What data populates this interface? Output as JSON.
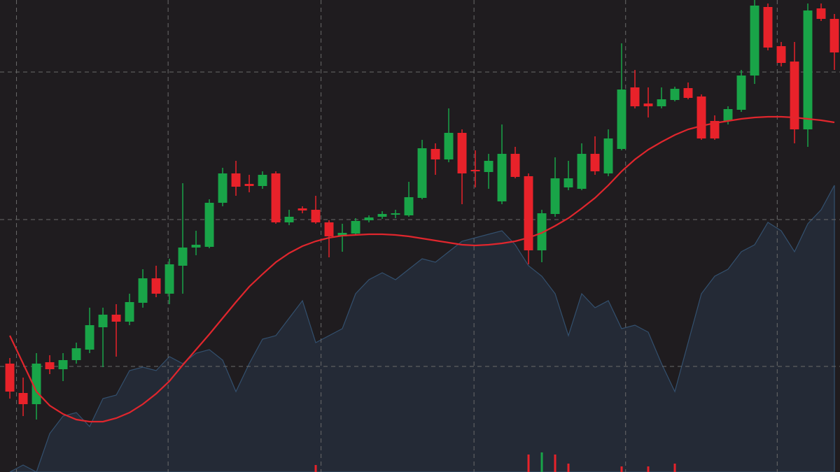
{
  "chart_data": {
    "type": "candlestick",
    "background": "#1f1c1f",
    "grid": true,
    "grid_color": "#6a6a6a",
    "xlim": [
      -0.74,
      62.42
    ],
    "ylim": [
      0,
      675
    ],
    "xticks": [
      0.5,
      11.9,
      23.4,
      34.9,
      46.3,
      57.7
    ],
    "yticks": [
      151,
      361,
      572
    ],
    "up_color": "#19a448",
    "down_color": "#e8222a",
    "x": [
      0,
      1,
      2,
      3,
      4,
      5,
      6,
      7,
      8,
      9,
      10,
      11,
      12,
      13,
      14,
      15,
      16,
      17,
      18,
      19,
      20,
      21,
      22,
      23,
      24,
      25,
      26,
      27,
      28,
      29,
      30,
      31,
      32,
      33,
      34,
      35,
      36,
      37,
      38,
      39,
      40,
      41,
      42,
      43,
      44,
      45,
      46,
      47,
      48,
      49,
      50,
      51,
      52,
      53,
      54,
      55,
      56,
      57,
      58,
      59,
      60,
      61,
      62
    ],
    "open": [
      155,
      113,
      97,
      157,
      147,
      160,
      175,
      207,
      225,
      215,
      242,
      277,
      255,
      295,
      321,
      322,
      385,
      427,
      412,
      409,
      427,
      357,
      377,
      375,
      357,
      337,
      341,
      360,
      365,
      368,
      367,
      392,
      462,
      447,
      485,
      432,
      429,
      387,
      455,
      423,
      317,
      369,
      407,
      405,
      455,
      427,
      462,
      550,
      527,
      523,
      532,
      549,
      537,
      502,
      502,
      518,
      567,
      665,
      609,
      587,
      490,
      663,
      648
    ],
    "high": [
      163,
      135,
      170,
      167,
      170,
      185,
      235,
      235,
      240,
      255,
      290,
      295,
      305,
      413,
      345,
      390,
      435,
      445,
      425,
      430,
      430,
      375,
      380,
      395,
      360,
      355,
      363,
      367,
      373,
      375,
      415,
      475,
      470,
      520,
      490,
      460,
      455,
      497,
      465,
      427,
      375,
      450,
      445,
      470,
      480,
      490,
      613,
      575,
      550,
      550,
      551,
      557,
      540,
      510,
      523,
      575,
      675,
      670,
      615,
      615,
      670,
      670,
      655
    ],
    "low": [
      105,
      80,
      75,
      140,
      130,
      155,
      170,
      150,
      165,
      210,
      235,
      250,
      240,
      255,
      310,
      320,
      380,
      395,
      400,
      405,
      355,
      353,
      370,
      355,
      307,
      315,
      339,
      357,
      362,
      363,
      365,
      390,
      425,
      443,
      383,
      407,
      405,
      383,
      420,
      297,
      300,
      365,
      403,
      403,
      425,
      423,
      460,
      520,
      507,
      520,
      530,
      533,
      475,
      475,
      497,
      515,
      555,
      603,
      580,
      470,
      465,
      645,
      575
    ],
    "close": [
      115,
      97,
      155,
      147,
      160,
      177,
      210,
      225,
      215,
      243,
      277,
      255,
      297,
      321,
      325,
      385,
      427,
      408,
      409,
      425,
      357,
      365,
      374,
      357,
      337,
      342,
      359,
      364,
      369,
      370,
      393,
      463,
      447,
      485,
      427,
      430,
      445,
      455,
      422,
      317,
      370,
      420,
      420,
      455,
      430,
      477,
      547,
      523,
      523,
      533,
      548,
      535,
      477,
      477,
      519,
      567,
      667,
      607,
      585,
      490,
      660,
      648,
      600
    ],
    "moving_average": {
      "color": "#e0262d",
      "values": [
        195,
        155,
        115,
        95,
        83,
        75,
        72,
        72,
        77,
        85,
        97,
        112,
        130,
        153,
        175,
        197,
        220,
        243,
        265,
        283,
        300,
        313,
        323,
        330,
        335,
        338,
        339,
        340,
        340,
        339,
        337,
        334,
        331,
        328,
        325,
        324,
        325,
        327,
        330,
        335,
        342,
        352,
        363,
        377,
        392,
        410,
        430,
        447,
        461,
        472,
        482,
        490,
        495,
        499,
        502,
        505,
        507,
        508,
        508,
        507,
        505,
        503,
        500
      ]
    },
    "area": {
      "color": "#242a36",
      "line_color": "#33506e",
      "values": [
        0,
        10,
        0,
        55,
        80,
        85,
        65,
        105,
        110,
        145,
        150,
        145,
        165,
        155,
        170,
        175,
        160,
        115,
        155,
        190,
        195,
        220,
        245,
        185,
        195,
        205,
        255,
        275,
        285,
        275,
        290,
        305,
        300,
        315,
        330,
        335,
        340,
        345,
        325,
        295,
        280,
        255,
        195,
        255,
        235,
        245,
        205,
        210,
        200,
        155,
        115,
        185,
        255,
        280,
        290,
        315,
        325,
        357,
        345,
        315,
        355,
        375,
        410
      ]
    },
    "volume": {
      "x": [
        23,
        39,
        40,
        41,
        42,
        46,
        48,
        50
      ],
      "values": [
        10,
        25,
        28,
        25,
        12,
        8,
        8,
        12
      ],
      "colors": [
        "#e8222a",
        "#e8222a",
        "#19a448",
        "#e8222a",
        "#e8222a",
        "#e8222a",
        "#e8222a",
        "#e8222a"
      ]
    }
  }
}
